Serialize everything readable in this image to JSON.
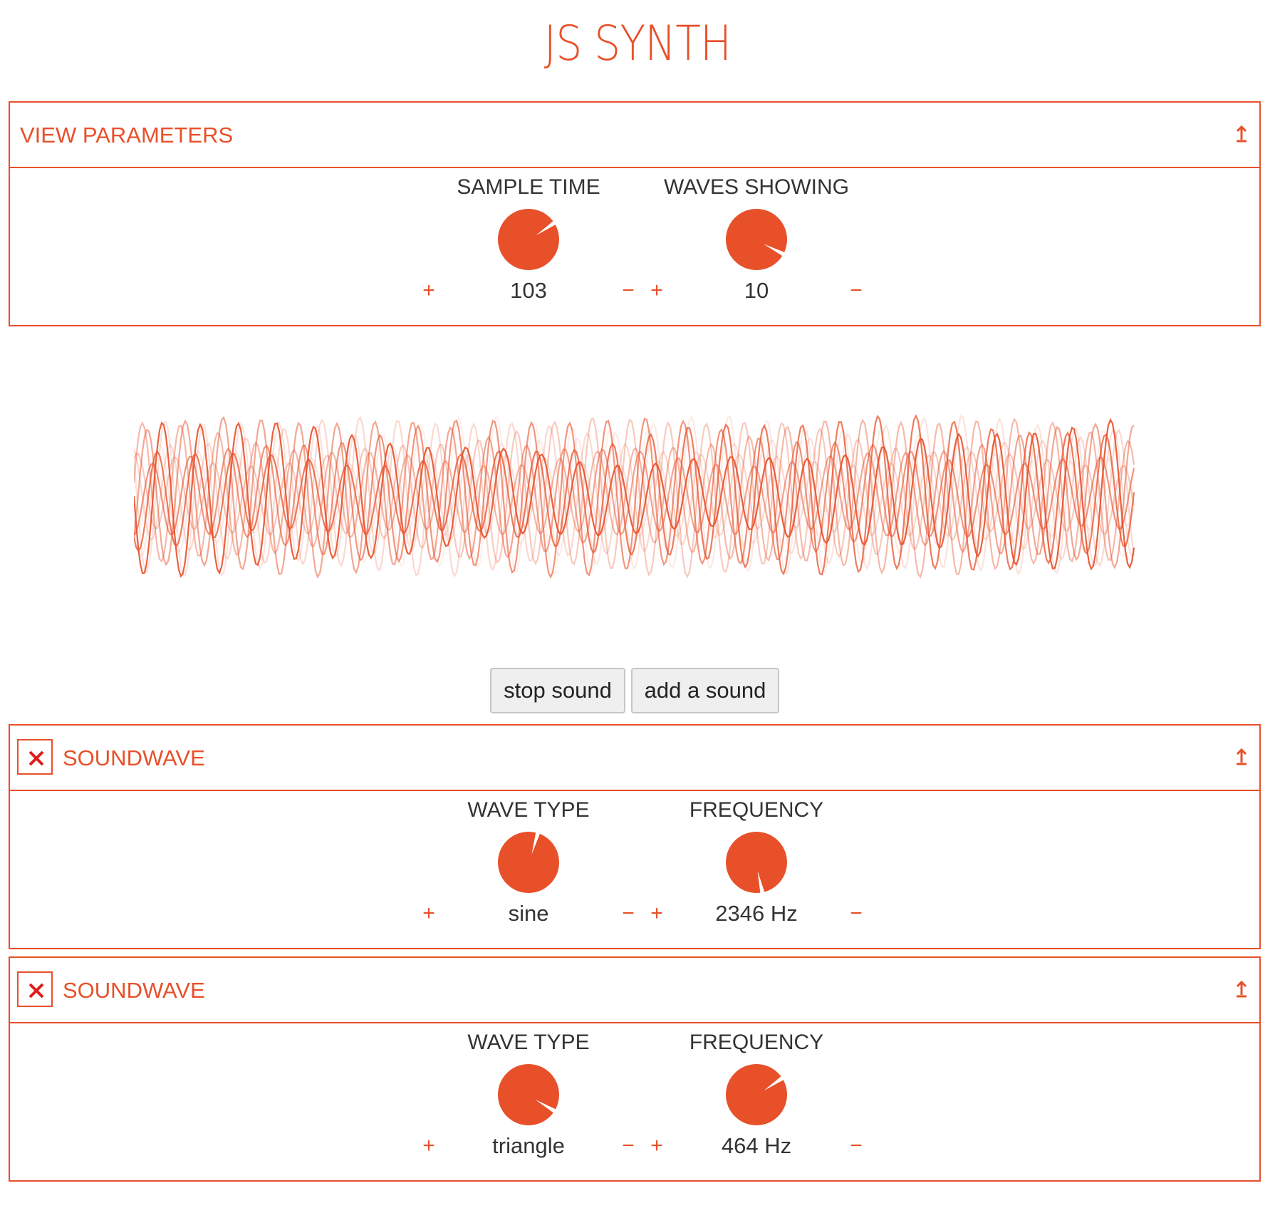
{
  "app": {
    "title": "JS SYNTH"
  },
  "view_parameters": {
    "title": "VIEW PARAMETERS",
    "collapse_icon": "collapse-up-icon",
    "knobs": [
      {
        "label": "SAMPLE TIME",
        "value": "103",
        "plus": "+",
        "minus": "−",
        "level": 0.67
      },
      {
        "label": "WAVES SHOWING",
        "value": "10",
        "plus": "+",
        "minus": "−",
        "level": 0.84
      }
    ]
  },
  "controls": {
    "stop_label": "stop sound",
    "add_label": "add a sound"
  },
  "soundwaves": [
    {
      "title": "SOUNDWAVE",
      "close_icon": "close-x-icon",
      "collapse_icon": "collapse-up-icon",
      "knobs": [
        {
          "label": "WAVE TYPE",
          "value": "sine",
          "plus": "+",
          "minus": "−",
          "level": 0.56
        },
        {
          "label": "FREQUENCY",
          "value": "2346 Hz",
          "plus": "+",
          "minus": "−",
          "level": 0.98
        }
      ]
    },
    {
      "title": "SOUNDWAVE",
      "close_icon": "close-x-icon",
      "collapse_icon": "collapse-up-icon",
      "knobs": [
        {
          "label": "WAVE TYPE",
          "value": "triangle",
          "plus": "+",
          "minus": "−",
          "level": 0.85
        },
        {
          "label": "FREQUENCY",
          "value": "464 Hz",
          "plus": "+",
          "minus": "−",
          "level": 0.67
        }
      ]
    }
  ],
  "colors": {
    "accent": "#e8502a",
    "close": "#e21b1b",
    "text": "#333333"
  }
}
